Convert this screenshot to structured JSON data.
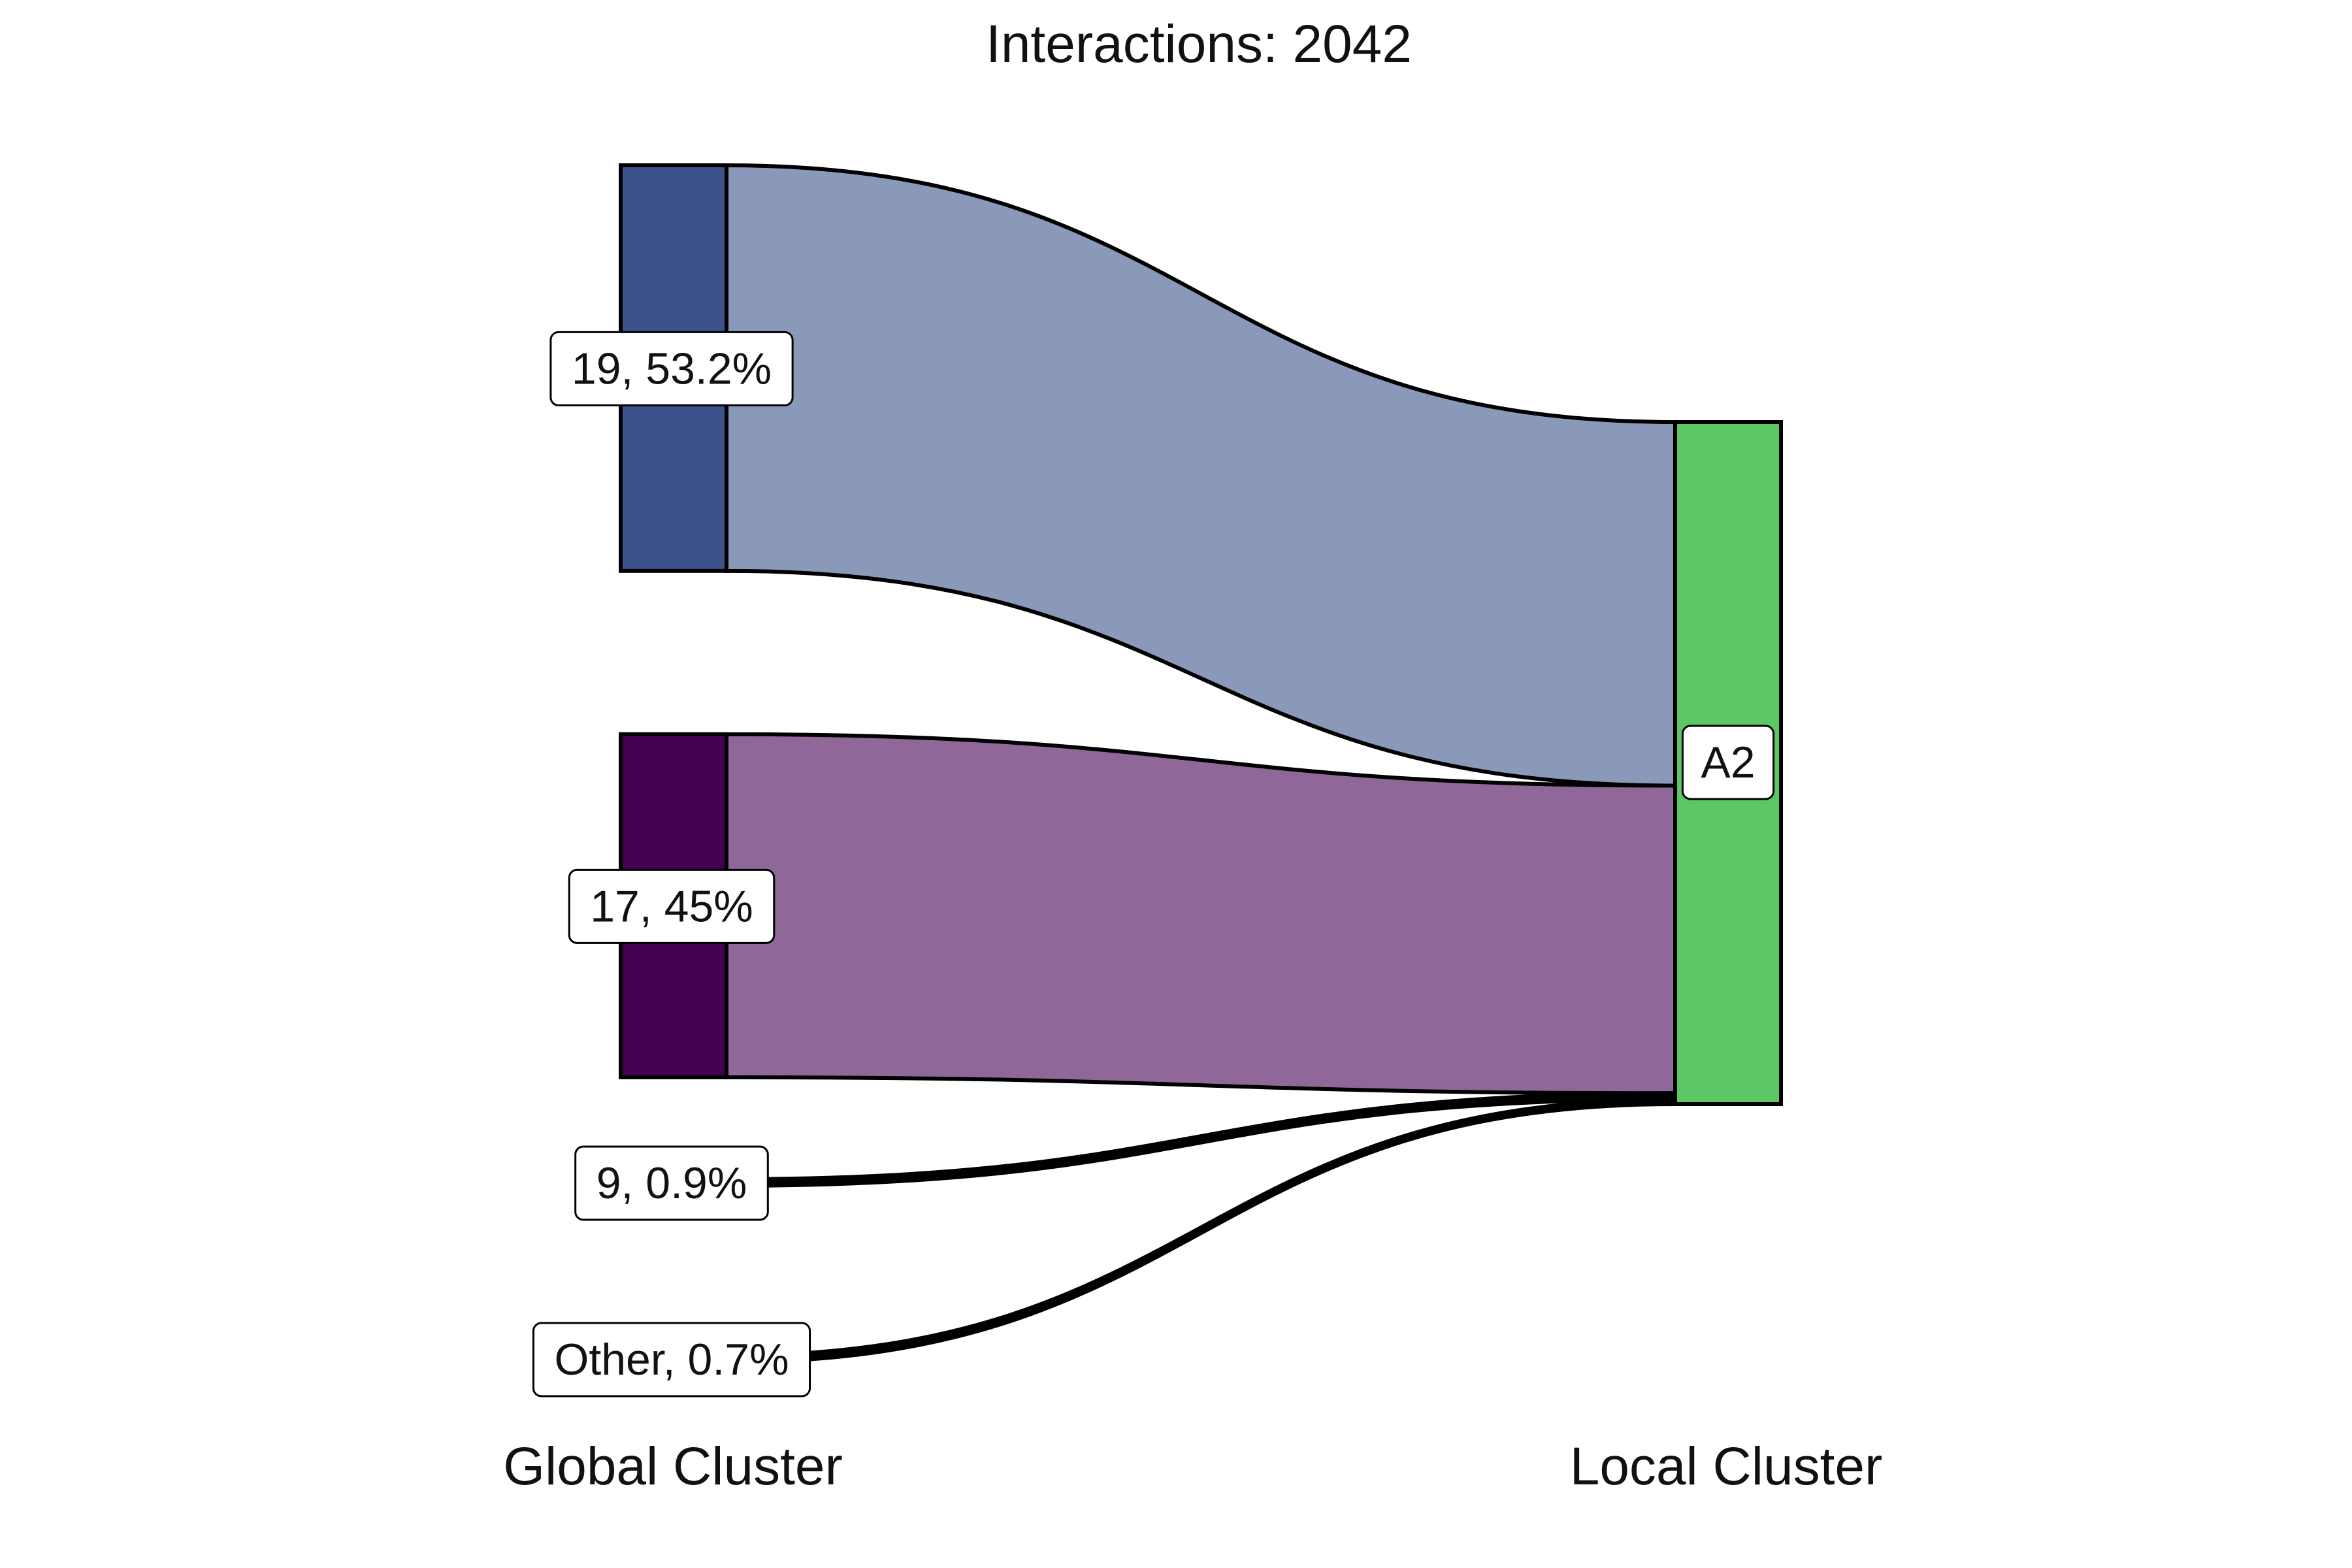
{
  "chart_data": {
    "type": "sankey",
    "title": "Interactions: 2042",
    "axis_labels": [
      "Global Cluster",
      "Local Cluster"
    ],
    "target": {
      "name": "A2",
      "color": "#5DC863"
    },
    "sources": [
      {
        "label": "19, 53.2%",
        "percent": 53.2,
        "color": "#3B528B",
        "flow_color": "#8A99B9"
      },
      {
        "label": "17, 45%",
        "percent": 45.0,
        "color": "#440154",
        "flow_color": "#8F6798"
      },
      {
        "label": "9, 0.9%",
        "percent": 0.9,
        "color": "#000000",
        "flow_color": "#000000"
      },
      {
        "label": "Other, 0.7%",
        "percent": 0.7,
        "color": "#000000",
        "flow_color": "#000000"
      }
    ]
  }
}
